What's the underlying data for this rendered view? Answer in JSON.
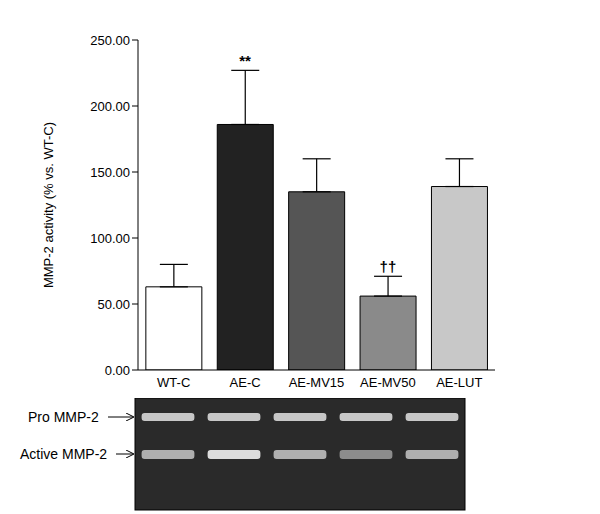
{
  "chart_data": {
    "type": "bar",
    "y_label": "MMP-2 activity (% vs. WT-C)",
    "categories": [
      "WT-C",
      "AE-C",
      "AE-MV15",
      "AE-MV50",
      "AE-LUT"
    ],
    "values": [
      63,
      186,
      135,
      56,
      139
    ],
    "errors": [
      17,
      41,
      25,
      15,
      21
    ],
    "significance": [
      null,
      "**",
      null,
      "††",
      null
    ],
    "colors": [
      "#ffffff",
      "#222222",
      "#555555",
      "#8a8a8a",
      "#c8c8c8"
    ],
    "ylim": [
      0,
      250
    ],
    "yticks": [
      {
        "value": 0,
        "label": "0.00"
      },
      {
        "value": 50,
        "label": "50.00"
      },
      {
        "value": 100,
        "label": "100.00"
      },
      {
        "value": 150,
        "label": "150.00"
      },
      {
        "value": 200,
        "label": "200.00"
      },
      {
        "value": 250,
        "label": "250.00"
      }
    ],
    "grid": false,
    "annotations": {
      "gel_labels": [
        "Pro MMP-2",
        "Active MMP-2"
      ]
    }
  }
}
